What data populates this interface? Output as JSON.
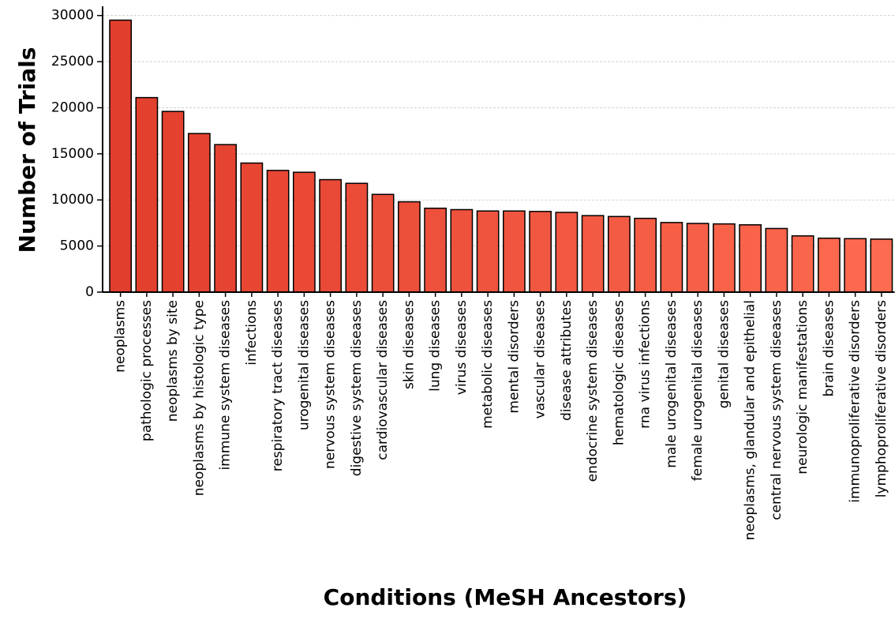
{
  "chart_data": {
    "type": "bar",
    "x_label": "Conditions (MeSH Ancestors)",
    "y_label": "Number of Trials",
    "categories": [
      "neoplasms",
      "pathologic processes",
      "neoplasms by site",
      "neoplasms by histologic type",
      "immune system diseases",
      "infections",
      "respiratory tract diseases",
      "urogenital diseases",
      "nervous system diseases",
      "digestive system diseases",
      "cardiovascular diseases",
      "skin diseases",
      "lung diseases",
      "virus diseases",
      "metabolic diseases",
      "mental disorders",
      "vascular diseases",
      "disease attributes",
      "endocrine system diseases",
      "hematologic diseases",
      "rna virus infections",
      "male urogenital diseases",
      "female urogenital diseases",
      "genital diseases",
      "neoplasms, glandular and epithelial",
      "central nervous system diseases",
      "neurologic manifestations",
      "brain diseases",
      "immunoproliferative disorders",
      "lymphoproliferative disorders"
    ],
    "values": [
      29500,
      21100,
      19600,
      17200,
      16000,
      14000,
      13200,
      13000,
      12200,
      11800,
      10600,
      9800,
      9100,
      8950,
      8800,
      8800,
      8750,
      8650,
      8300,
      8200,
      8000,
      7550,
      7450,
      7400,
      7300,
      6900,
      6100,
      5850,
      5800,
      5750
    ],
    "color_range": [
      "#e23e2d",
      "#fd6b50"
    ],
    "edge_color": "#000000",
    "ylim": [
      0,
      31000
    ],
    "yticks": [
      0,
      5000,
      10000,
      15000,
      20000,
      25000,
      30000
    ],
    "grid": true
  }
}
